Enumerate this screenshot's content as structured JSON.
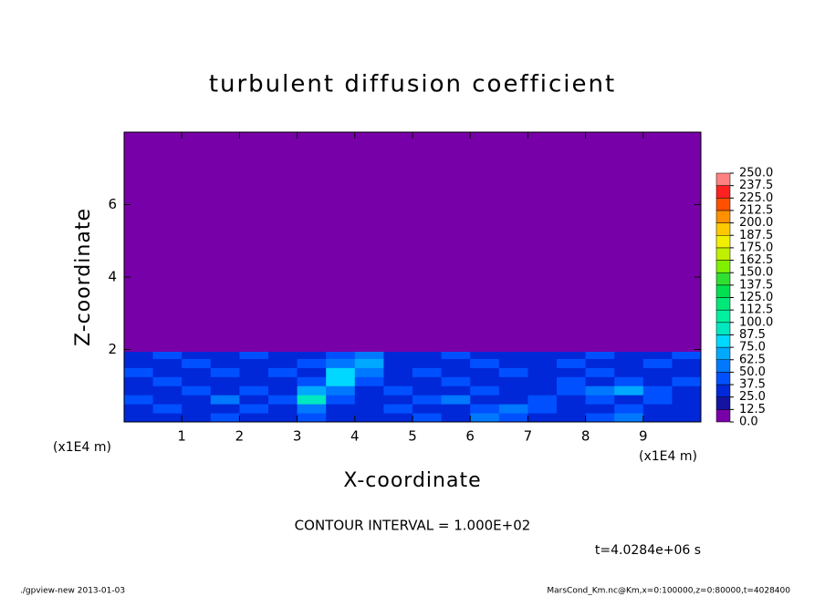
{
  "chart_data": {
    "type": "heatmap",
    "title": "turbulent diffusion coefficient",
    "xlabel": "X-coordinate",
    "ylabel": "Z-coordinate",
    "x_unit": "(x1E4 m)",
    "y_unit": "(x1E4 m)",
    "xlim": [
      0,
      10
    ],
    "ylim": [
      0,
      8
    ],
    "xticks": [
      1,
      2,
      3,
      4,
      5,
      6,
      7,
      8,
      9
    ],
    "yticks": [
      2,
      4,
      6
    ],
    "x_edges": [
      0,
      0.5,
      1,
      1.5,
      2,
      2.5,
      3,
      3.5,
      4,
      4.5,
      5,
      5.5,
      6,
      6.5,
      7,
      7.5,
      8,
      8.5,
      9,
      9.5,
      10
    ],
    "y_edges": [
      0,
      0.25,
      0.5,
      0.75,
      1,
      1.25,
      1.5,
      1.75,
      1.95,
      8
    ],
    "z": [
      [
        25,
        25,
        25,
        37.5,
        25,
        25,
        37.5,
        25,
        25,
        25,
        37.5,
        25,
        50,
        37.5,
        25,
        25,
        37.5,
        50,
        25,
        25
      ],
      [
        25,
        37.5,
        25,
        25,
        37.5,
        25,
        50,
        25,
        25,
        37.5,
        25,
        25,
        37.5,
        50,
        37.5,
        25,
        25,
        37.5,
        25,
        25
      ],
      [
        37.5,
        25,
        25,
        50,
        25,
        37.5,
        87.5,
        37.5,
        25,
        25,
        37.5,
        50,
        25,
        25,
        37.5,
        25,
        37.5,
        25,
        37.5,
        25
      ],
      [
        25,
        25,
        37.5,
        25,
        37.5,
        25,
        62.5,
        50,
        25,
        37.5,
        25,
        25,
        37.5,
        25,
        25,
        37.5,
        50,
        62.5,
        37.5,
        25
      ],
      [
        25,
        37.5,
        25,
        25,
        25,
        25,
        37.5,
        75,
        37.5,
        25,
        25,
        37.5,
        25,
        25,
        25,
        37.5,
        25,
        37.5,
        25,
        37.5
      ],
      [
        37.5,
        25,
        25,
        37.5,
        25,
        37.5,
        25,
        75,
        50,
        25,
        37.5,
        25,
        25,
        37.5,
        25,
        25,
        37.5,
        25,
        25,
        25
      ],
      [
        25,
        25,
        37.5,
        25,
        25,
        25,
        37.5,
        50,
        62.5,
        25,
        25,
        25,
        37.5,
        25,
        25,
        37.5,
        25,
        25,
        37.5,
        25
      ],
      [
        25,
        37.5,
        25,
        25,
        37.5,
        25,
        25,
        37.5,
        50,
        25,
        25,
        37.5,
        25,
        25,
        25,
        25,
        37.5,
        25,
        25,
        37.5
      ],
      [
        0,
        0,
        0,
        0,
        0,
        0,
        0,
        0,
        0,
        0,
        0,
        0,
        0,
        0,
        0,
        0,
        0,
        0,
        0,
        0
      ]
    ],
    "colorbar": {
      "ticks": [
        {
          "value": 0,
          "label": "0.0"
        },
        {
          "value": 12.5,
          "label": "12.5"
        },
        {
          "value": 25,
          "label": "25.0"
        },
        {
          "value": 37.5,
          "label": "37.5"
        },
        {
          "value": 50,
          "label": "50.0"
        },
        {
          "value": 62.5,
          "label": "62.5"
        },
        {
          "value": 75,
          "label": "75.0"
        },
        {
          "value": 87.5,
          "label": "87.5"
        },
        {
          "value": 100,
          "label": "100.0"
        },
        {
          "value": 112.5,
          "label": "112.5"
        },
        {
          "value": 125,
          "label": "125.0"
        },
        {
          "value": 137.5,
          "label": "137.5"
        },
        {
          "value": 150,
          "label": "150.0"
        },
        {
          "value": 162.5,
          "label": "162.5"
        },
        {
          "value": 175,
          "label": "175.0"
        },
        {
          "value": 187.5,
          "label": "187.5"
        },
        {
          "value": 200,
          "label": "200.0"
        },
        {
          "value": 212.5,
          "label": "212.5"
        },
        {
          "value": 225,
          "label": "225.0"
        },
        {
          "value": 237.5,
          "label": "237.5"
        },
        {
          "value": 250,
          "label": "250.0"
        }
      ],
      "colors": [
        "#7800a8",
        "#1414a0",
        "#0028d8",
        "#0050ff",
        "#0078ff",
        "#00a8ff",
        "#00d8ff",
        "#00e8c0",
        "#00f0a0",
        "#00e878",
        "#00e050",
        "#30e030",
        "#80f000",
        "#c0f000",
        "#f0f000",
        "#ffc800",
        "#ff9000",
        "#ff5000",
        "#ff2020",
        "#ff8080"
      ]
    },
    "annotations": [
      "CONTOUR INTERVAL = 1.000E+02",
      "t=4.0284e+06 s"
    ]
  },
  "footer": {
    "left": "./gpview-new   2013-01-03",
    "right": "MarsCond_Km.nc@Km,x=0:100000,z=0:80000,t=4028400"
  }
}
